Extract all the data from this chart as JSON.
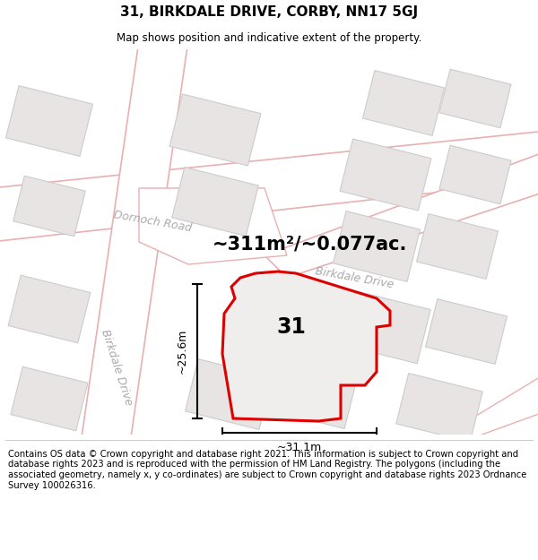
{
  "title_line1": "31, BIRKDALE DRIVE, CORBY, NN17 5GJ",
  "title_line2": "Map shows position and indicative extent of the property.",
  "area_text": "~311m²/~0.077ac.",
  "number_label": "31",
  "dim_horizontal": "~31.1m",
  "dim_vertical": "~25.6m",
  "road_label_dornoch": "Dornoch Road",
  "road_label_birkdale_v": "Birkdale Drive",
  "road_label_birkdale_h": "Birkdale Drive",
  "footer_text": "Contains OS data © Crown copyright and database right 2021. This information is subject to Crown copyright and database rights 2023 and is reproduced with the permission of HM Land Registry. The polygons (including the associated geometry, namely x, y co-ordinates) are subject to Crown copyright and database rights 2023 Ordnance Survey 100026316.",
  "map_bg": "#f5f3f3",
  "road_fill": "#ffffff",
  "road_edge": "#e8b0b0",
  "building_fill": "#e8e4e4",
  "building_edge": "#cccccc",
  "property_fill": "#f0eded",
  "property_stroke": "#dd0000",
  "label_color": "#aaaaaa",
  "footer_fontsize": 7.2,
  "title_fontsize": 11,
  "area_fontsize": 15
}
